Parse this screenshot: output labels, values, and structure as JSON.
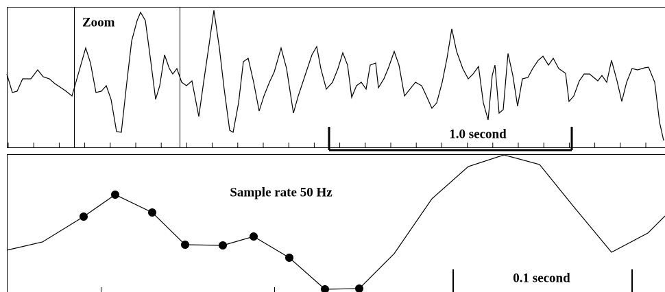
{
  "chart_data": [
    {
      "type": "line",
      "annotations": [
        "Zoom",
        "1.0 second"
      ],
      "xlim": [
        0,
        960
      ],
      "ylim": [
        0,
        205
      ],
      "x": [
        0,
        8,
        15,
        23,
        35,
        45,
        53,
        62,
        70,
        85,
        95,
        105,
        115,
        122,
        130,
        138,
        145,
        152,
        160,
        167,
        175,
        182,
        190,
        195,
        202,
        210,
        217,
        223,
        230,
        237,
        242,
        248,
        255,
        262,
        270,
        280,
        287,
        295,
        302,
        310,
        317,
        325,
        330,
        338,
        345,
        352,
        360,
        368,
        375,
        383,
        390,
        400,
        408,
        418,
        425,
        435,
        445,
        452,
        458,
        466,
        475,
        483,
        490,
        497,
        503,
        510,
        517,
        524,
        530,
        538,
        542,
        550,
        557,
        565,
        572,
        580,
        588,
        596,
        605,
        612,
        620,
        627,
        635,
        642,
        649,
        656,
        665,
        673,
        680,
        688,
        695,
        702,
        708,
        712,
        718,
        724,
        731,
        738,
        745,
        752,
        760,
        767,
        775,
        782,
        790,
        797,
        805,
        815,
        820,
        827,
        835,
        842,
        850,
        856,
        862,
        868,
        875,
        882,
        890,
        897,
        904,
        912,
        920,
        930,
        936,
        945,
        952,
        958
      ],
      "series": [
        {
          "color": "#000000",
          "values": [
            107,
            80,
            82,
            100,
            100,
            113,
            103,
            100,
            93,
            83,
            75,
            110,
            145,
            123,
            80,
            82,
            90,
            70,
            23,
            22,
            95,
            155,
            185,
            197,
            185,
            125,
            70,
            90,
            135,
            115,
            107,
            115,
            95,
            90,
            97,
            45,
            95,
            150,
            200,
            145,
            85,
            25,
            22,
            65,
            125,
            130,
            95,
            53,
            75,
            95,
            110,
            145,
            115,
            50,
            75,
            105,
            135,
            147,
            115,
            85,
            95,
            115,
            138,
            120,
            73,
            90,
            95,
            85,
            120,
            123,
            87,
            100,
            117,
            140,
            120,
            75,
            85,
            95,
            90,
            75,
            57,
            65,
            95,
            130,
            173,
            140,
            115,
            100,
            107,
            118,
            65,
            40,
            105,
            120,
            50,
            55,
            137,
            105,
            60,
            100,
            102,
            115,
            127,
            133,
            120,
            130,
            115,
            108,
            67,
            75,
            97,
            107,
            107,
            102,
            97,
            105,
            95,
            127,
            97,
            67,
            95,
            115,
            113,
            116,
            117,
            95,
            37,
            10
          ]
        }
      ]
    },
    {
      "type": "line",
      "annotations": [
        "Sample rate 50 Hz",
        "0.1 second"
      ],
      "xlim": [
        0,
        960
      ],
      "ylim": [
        0,
        201
      ],
      "x": [
        0,
        52,
        112,
        158,
        212,
        260,
        315,
        360,
        412,
        464,
        514,
        565,
        620,
        673,
        725,
        777,
        828,
        882,
        935,
        960
      ],
      "series": [
        {
          "color": "#000000",
          "values": [
            61,
            73,
            110,
            142,
            116,
            69,
            68,
            81,
            50,
            4,
            5,
            56,
            136,
            183,
            200,
            186,
            123,
            58,
            86,
            111
          ]
        },
        {
          "color": "#000000",
          "marker": true,
          "line": false,
          "values": [
            null,
            null,
            110,
            142,
            116,
            69,
            68,
            81,
            50,
            4,
            5,
            null,
            null,
            null,
            null,
            null,
            null,
            null,
            null,
            null
          ]
        }
      ]
    }
  ]
}
